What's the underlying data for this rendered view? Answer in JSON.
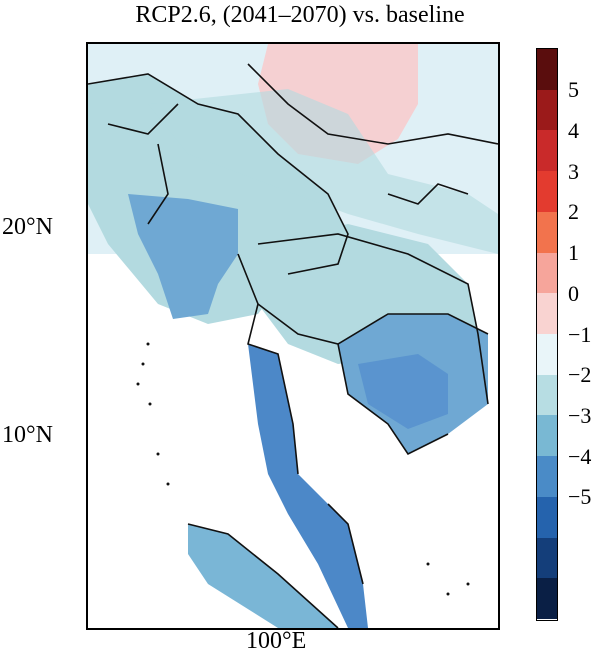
{
  "title": "RCP2.6, (2041–2070) vs. baseline",
  "axes": {
    "lat_labels": [
      "20°N",
      "10°N"
    ],
    "lon_labels": [
      "100°E"
    ]
  },
  "colorbar": {
    "colors": [
      "#5a0d0d",
      "#9b1a1a",
      "#c92a2a",
      "#e33b2f",
      "#f2734d",
      "#f6a59b",
      "#f9d3d1",
      "#e9f5f9",
      "#b7dde3",
      "#79b8d3",
      "#4a8bc7",
      "#2563ad",
      "#143e7a",
      "#0a1f45"
    ],
    "labels": [
      "5",
      "4",
      "3",
      "2",
      "1",
      "0",
      "−1",
      "−2",
      "−3",
      "−4",
      "−5"
    ]
  },
  "legend_colors": {
    "pink": "#f5d0d2",
    "lightest": "#dff0f6",
    "light": "#b3dae0",
    "mid": "#7ab6d6",
    "strong": "#4c88c8",
    "border": "#111111"
  }
}
